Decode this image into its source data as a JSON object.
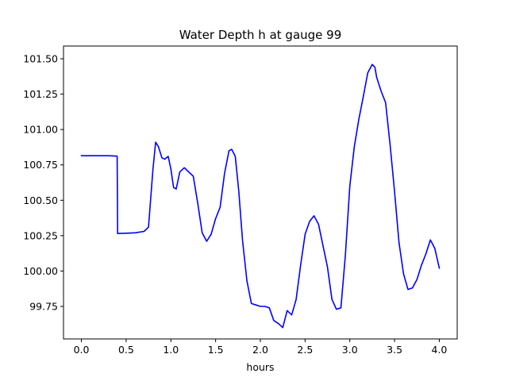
{
  "chart_data": {
    "type": "line",
    "title": "Water Depth h at gauge 99",
    "xlabel": "hours",
    "ylabel": "",
    "xlim": [
      -0.2,
      4.2
    ],
    "ylim": [
      99.52,
      101.59
    ],
    "xticks": [
      0.0,
      0.5,
      1.0,
      1.5,
      2.0,
      2.5,
      3.0,
      3.5,
      4.0
    ],
    "xtick_labels": [
      "0.0",
      "0.5",
      "1.0",
      "1.5",
      "2.0",
      "2.5",
      "3.0",
      "3.5",
      "4.0"
    ],
    "yticks": [
      99.75,
      100.0,
      100.25,
      100.5,
      100.75,
      101.0,
      101.25,
      101.5
    ],
    "ytick_labels": [
      "99.75",
      "100.00",
      "100.25",
      "100.50",
      "100.75",
      "101.00",
      "101.25",
      "101.50"
    ],
    "grid": false,
    "legend": "none",
    "series": [
      {
        "color": "#0000ff",
        "x": [
          0.0,
          0.1,
          0.2,
          0.3,
          0.4,
          0.405,
          0.5,
          0.6,
          0.7,
          0.75,
          0.8,
          0.83,
          0.86,
          0.9,
          0.93,
          0.97,
          1.0,
          1.03,
          1.06,
          1.1,
          1.15,
          1.2,
          1.25,
          1.3,
          1.35,
          1.4,
          1.45,
          1.5,
          1.55,
          1.6,
          1.65,
          1.68,
          1.72,
          1.76,
          1.8,
          1.85,
          1.9,
          1.95,
          2.0,
          2.05,
          2.1,
          2.15,
          2.2,
          2.25,
          2.3,
          2.35,
          2.4,
          2.45,
          2.5,
          2.55,
          2.6,
          2.65,
          2.7,
          2.75,
          2.8,
          2.85,
          2.9,
          2.95,
          3.0,
          3.05,
          3.1,
          3.15,
          3.2,
          3.25,
          3.28,
          3.3,
          3.35,
          3.4,
          3.45,
          3.5,
          3.55,
          3.6,
          3.65,
          3.7,
          3.75,
          3.8,
          3.85,
          3.9,
          3.95,
          4.0
        ],
        "y": [
          100.815,
          100.815,
          100.815,
          100.815,
          100.812,
          100.265,
          100.267,
          100.27,
          100.28,
          100.31,
          100.72,
          100.91,
          100.88,
          100.8,
          100.79,
          100.81,
          100.72,
          100.59,
          100.58,
          100.7,
          100.73,
          100.7,
          100.67,
          100.48,
          100.27,
          100.21,
          100.26,
          100.37,
          100.45,
          100.69,
          100.85,
          100.86,
          100.81,
          100.56,
          100.22,
          99.93,
          99.77,
          99.76,
          99.75,
          99.75,
          99.74,
          99.65,
          99.63,
          99.6,
          99.72,
          99.69,
          99.8,
          100.04,
          100.26,
          100.35,
          100.39,
          100.33,
          100.18,
          100.03,
          99.8,
          99.73,
          99.74,
          100.11,
          100.6,
          100.88,
          101.07,
          101.23,
          101.4,
          101.46,
          101.44,
          101.37,
          101.27,
          101.19,
          100.89,
          100.56,
          100.2,
          99.98,
          99.87,
          99.88,
          99.94,
          100.04,
          100.12,
          100.22,
          100.16,
          100.02
        ]
      }
    ]
  }
}
